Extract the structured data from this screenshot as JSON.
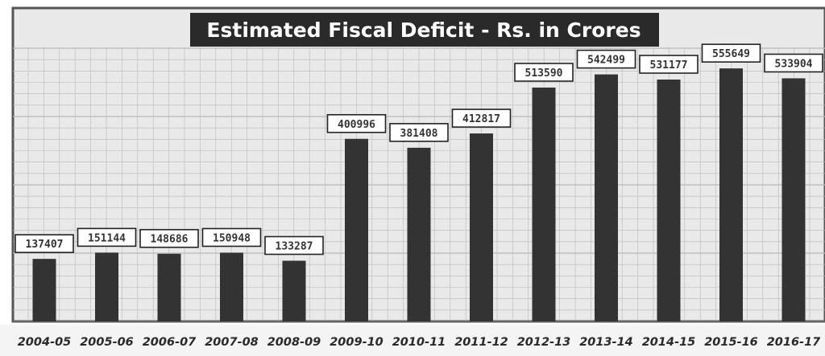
{
  "chart_data": {
    "type": "bar",
    "title": "Estimated Fiscal Deficit - Rs. in Crores",
    "categories": [
      "2004-05",
      "2005-06",
      "2006-07",
      "2007-08",
      "2008-09",
      "2009-10",
      "2010-11",
      "2011-12",
      "2012-13",
      "2013-14",
      "2014-15",
      "2015-16",
      "2016-17"
    ],
    "values": [
      137407,
      151144,
      148686,
      150948,
      133287,
      400996,
      381408,
      412817,
      513590,
      542499,
      531177,
      555649,
      533904
    ],
    "data_labels": [
      "137407",
      "151144",
      "148686",
      "150948",
      "133287",
      "400996",
      "381408",
      "412817",
      "513590",
      "542499",
      "531177",
      "555649",
      "533904"
    ],
    "xlabel": "",
    "ylabel": "",
    "ylim": [
      0,
      600000
    ],
    "grid": true,
    "legend": "none",
    "colors": {
      "bar": "#333333",
      "plot_bg": "#e9e9e9",
      "grid": "#b9b9b9",
      "title_bg": "#2a2a2a",
      "title_text": "#ffffff",
      "label_box_bg": "#ffffff",
      "label_box_border": "#222222",
      "label_text": "#333333",
      "frame": "#555555"
    }
  }
}
